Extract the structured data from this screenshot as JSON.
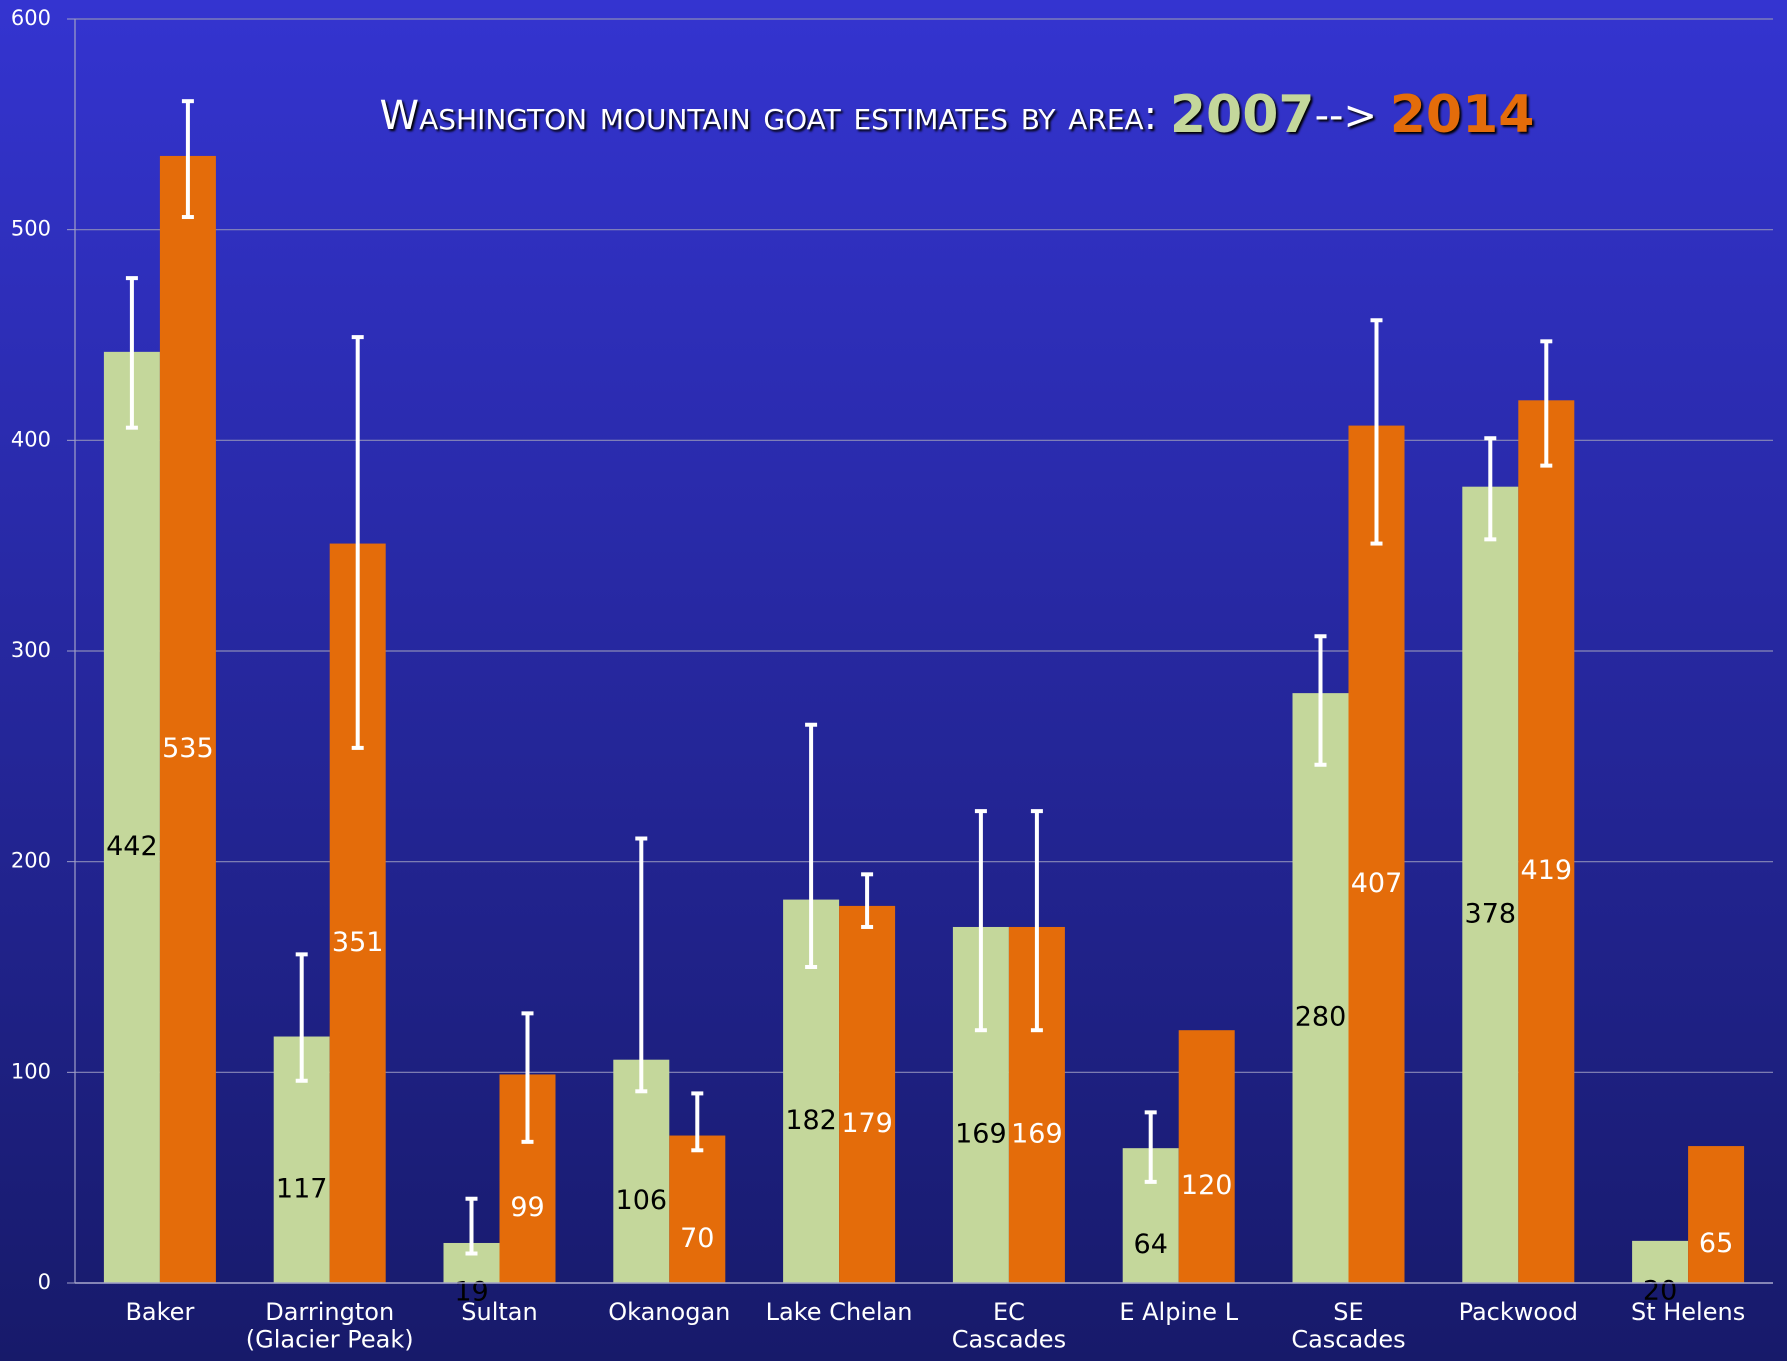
{
  "chart_data": {
    "type": "bar",
    "title": "Washington mountain goat estimates by area:",
    "title_separator": "-->",
    "categories": [
      "Baker",
      "Darrington\n(Glacier Peak)",
      "Sultan",
      "Okanogan",
      "Lake Chelan",
      "EC\nCascades",
      "E Alpine L",
      "SE\nCascades",
      "Packwood",
      "St Helens"
    ],
    "series": [
      {
        "name": "2007",
        "color": "#c4d79b",
        "label_color": "#000000",
        "values": [
          442,
          117,
          19,
          106,
          182,
          169,
          64,
          280,
          378,
          20
        ],
        "errors": [
          [
            36,
            35
          ],
          [
            21,
            39
          ],
          [
            5,
            21
          ],
          [
            15,
            105
          ],
          [
            32,
            83
          ],
          [
            49,
            55
          ],
          [
            16,
            17
          ],
          [
            34,
            27
          ],
          [
            25,
            23
          ],
          null
        ]
      },
      {
        "name": "2014",
        "color": "#e46c0a",
        "label_color": "#ffffff",
        "values": [
          535,
          351,
          99,
          70,
          179,
          169,
          120,
          407,
          419,
          65
        ],
        "errors": [
          [
            29,
            26
          ],
          [
            97,
            98
          ],
          [
            32,
            29
          ],
          [
            7,
            20
          ],
          [
            10,
            15
          ],
          [
            49,
            55
          ],
          null,
          [
            56,
            50
          ],
          [
            31,
            28
          ],
          null
        ]
      }
    ],
    "ylim": [
      0,
      600
    ],
    "yticks": [
      0,
      100,
      200,
      300,
      400,
      500,
      600
    ],
    "grid": true
  }
}
